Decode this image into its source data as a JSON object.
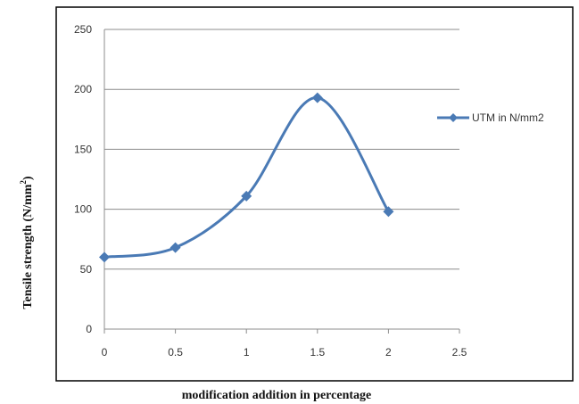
{
  "chart_data": {
    "type": "line",
    "title": "",
    "xlabel": "modification addition in percentage",
    "ylabel": "Tensile strength (N/mm",
    "ylabel_superscript": "2",
    "ylabel_close": ")",
    "x": [
      0,
      0.5,
      1,
      1.5,
      2
    ],
    "series": [
      {
        "name": "UTM in N/mm2",
        "values": [
          60,
          68,
          111,
          193,
          98
        ],
        "color": "#4a7ab5"
      }
    ],
    "xlim": [
      0,
      2.5
    ],
    "ylim": [
      0,
      250
    ],
    "x_ticks": [
      "0",
      "0.5",
      "1",
      "1.5",
      "2",
      "2.5"
    ],
    "y_ticks": [
      "0",
      "50",
      "100",
      "150",
      "200",
      "250"
    ],
    "grid": true,
    "smooth": true,
    "marker": "diamond",
    "legend_position": "right"
  }
}
